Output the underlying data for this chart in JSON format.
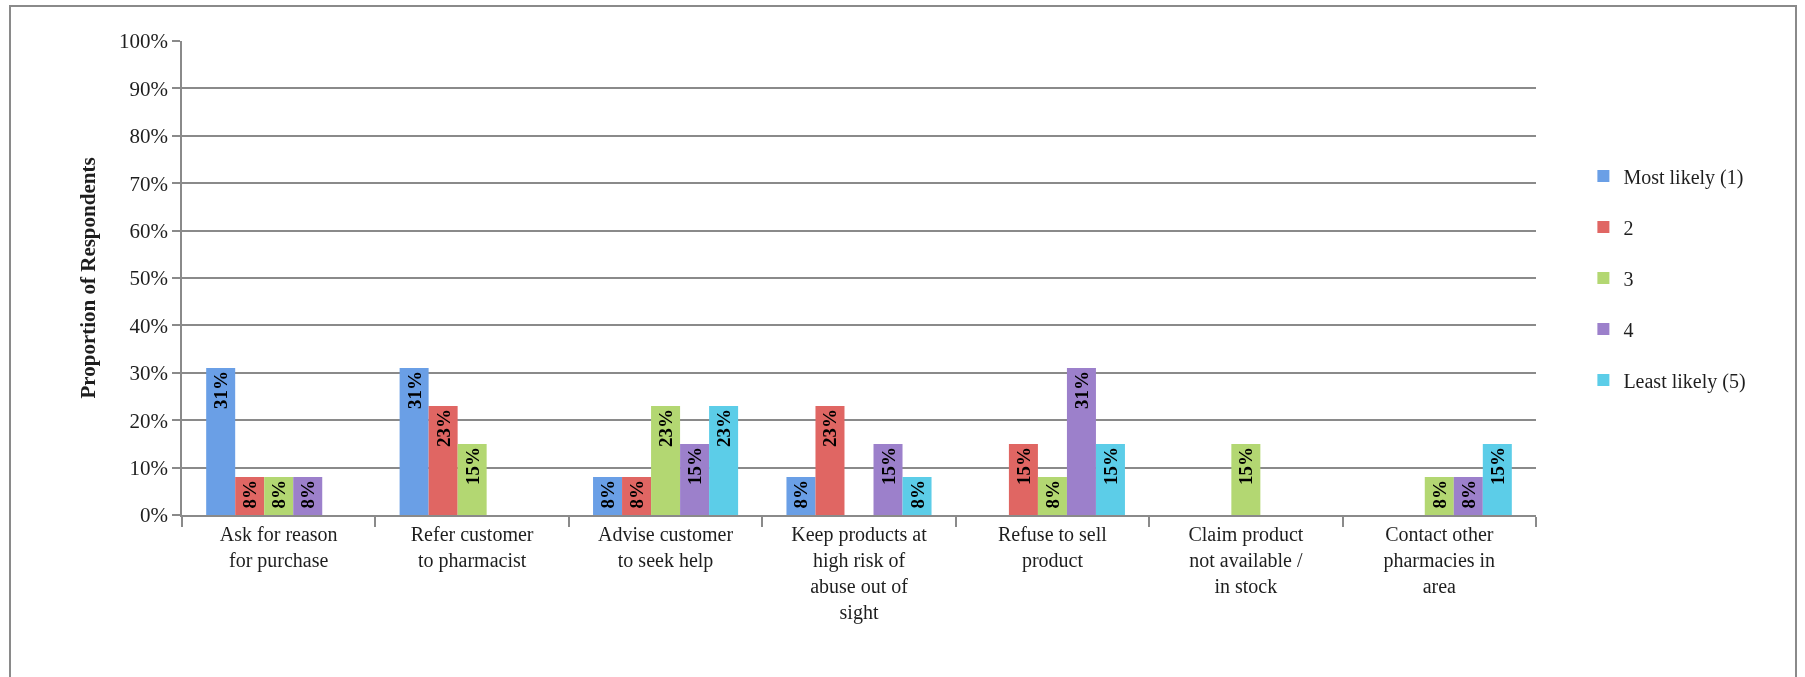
{
  "chart_data": {
    "type": "bar",
    "ylabel": "Proportion of Respondents",
    "categories": [
      "Ask for reason for purchase",
      "Refer customer to pharmacist",
      "Advise customer to seek help",
      "Keep products at high risk of abuse out of sight",
      "Refuse to sell product",
      "Claim product not available / in stock",
      "Contact other pharmacies in area"
    ],
    "series": [
      {
        "name": "Most likely (1)",
        "color": "#6a9fe6",
        "values": [
          31,
          31,
          8,
          8,
          null,
          null,
          null
        ],
        "value_labels": [
          "31%",
          "31%",
          "8%",
          "8%",
          null,
          null,
          null
        ]
      },
      {
        "name": "2",
        "color": "#e06663",
        "values": [
          8,
          23,
          8,
          23,
          15,
          null,
          null
        ],
        "value_labels": [
          "8%",
          "23%",
          "8%",
          "23%",
          "15%",
          null,
          null
        ]
      },
      {
        "name": "3",
        "color": "#b3d772",
        "values": [
          8,
          15,
          23,
          null,
          8,
          15,
          8
        ],
        "value_labels": [
          "8%",
          "15%",
          "23%",
          null,
          "8%",
          "15%",
          "8%"
        ]
      },
      {
        "name": "4",
        "color": "#9c80cb",
        "values": [
          8,
          null,
          15,
          15,
          31,
          null,
          8
        ],
        "value_labels": [
          "8%",
          null,
          "15%",
          "15%",
          "31%",
          null,
          "8%"
        ]
      },
      {
        "name": "Least likely (5)",
        "color": "#5ccde8",
        "values": [
          null,
          null,
          23,
          8,
          15,
          null,
          15
        ],
        "value_labels": [
          null,
          null,
          "23%",
          "8%",
          "15%",
          null,
          "15%"
        ]
      }
    ],
    "ylim": [
      0,
      100
    ],
    "yticks": [
      {
        "value": 0,
        "label": "0%"
      },
      {
        "value": 10,
        "label": "10%"
      },
      {
        "value": 20,
        "label": "20%"
      },
      {
        "value": 30,
        "label": "30%"
      },
      {
        "value": 40,
        "label": "40%"
      },
      {
        "value": 50,
        "label": "50%"
      },
      {
        "value": 60,
        "label": "60%"
      },
      {
        "value": 70,
        "label": "70%"
      },
      {
        "value": 80,
        "label": "80%"
      },
      {
        "value": 90,
        "label": "90%"
      },
      {
        "value": 100,
        "label": "100%"
      }
    ],
    "grid": "y",
    "legend": "right"
  }
}
